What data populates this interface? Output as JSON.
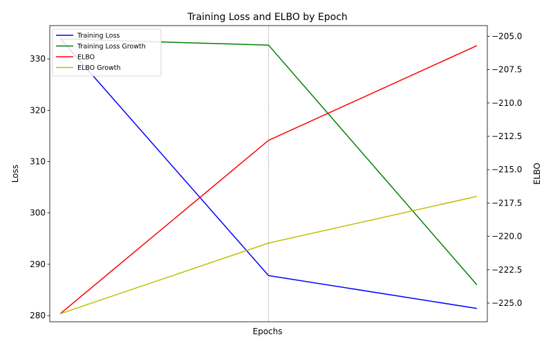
{
  "chart_data": {
    "type": "line",
    "title": "Training Loss and ELBO by Epoch",
    "xlabel": "Epochs",
    "ylabel": "Loss",
    "y2label": "ELBO",
    "x": [
      0,
      1,
      2
    ],
    "xlim": [
      -0.05,
      2.05
    ],
    "ylim": [
      278.8,
      336.5
    ],
    "y2lim": [
      -226.4,
      -204.2
    ],
    "yticks": [
      280,
      290,
      300,
      310,
      320,
      330
    ],
    "y2ticks": [
      -225.0,
      -222.5,
      -220.0,
      -217.5,
      -215.0,
      -212.5,
      -210.0,
      -207.5,
      -205.0
    ],
    "y2tick_labels": [
      "−225.0",
      "−222.5",
      "−220.0",
      "−217.5",
      "−215.0",
      "−212.5",
      "−210.0",
      "−207.5",
      "−205.0"
    ],
    "vline_x": 1,
    "grid": false,
    "legend": "top-left",
    "series": [
      {
        "name": "Training Loss",
        "axis": "left",
        "color": "#0000ff",
        "values": [
          334.0,
          287.8,
          281.4
        ]
      },
      {
        "name": "Training Loss Growth",
        "axis": "left",
        "color": "#008000",
        "values": [
          333.9,
          332.7,
          286.0
        ]
      },
      {
        "name": "ELBO",
        "axis": "right",
        "color": "#ff0000",
        "values": [
          -225.8,
          -212.8,
          -205.7
        ]
      },
      {
        "name": "ELBO Growth",
        "axis": "right",
        "color": "#bfbf00",
        "values": [
          -225.8,
          -220.5,
          -217.0
        ]
      }
    ]
  }
}
